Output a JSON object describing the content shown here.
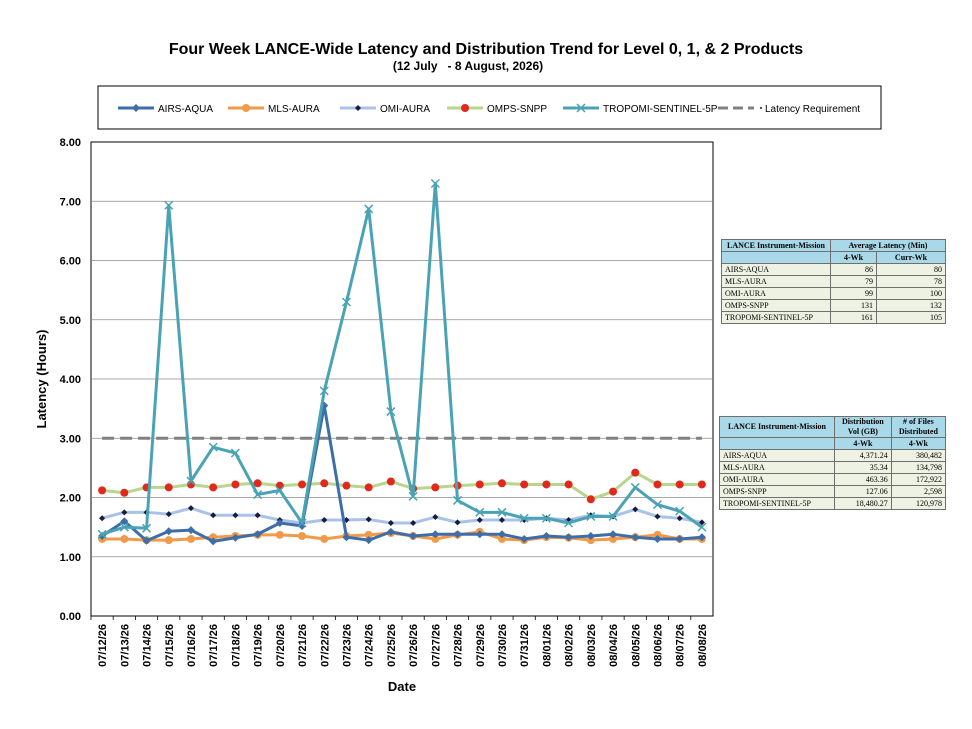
{
  "chart_data": {
    "type": "line",
    "title": "Four Week LANCE-Wide Latency and Distribution Trend for Level 0, 1, & 2 Products",
    "subtitle": "(12 July   - 8 August, 2026)",
    "xlabel": "Date",
    "ylabel": "Latency (Hours)",
    "ylim": [
      0,
      8
    ],
    "yticks": [
      "0.00",
      "1.00",
      "2.00",
      "3.00",
      "4.00",
      "5.00",
      "6.00",
      "7.00",
      "8.00"
    ],
    "grid": true,
    "legend_position": "top",
    "categories": [
      "07/12/26",
      "07/13/26",
      "07/14/26",
      "07/15/26",
      "07/16/26",
      "07/17/26",
      "07/18/26",
      "07/19/26",
      "07/20/26",
      "07/21/26",
      "07/22/26",
      "07/23/26",
      "07/24/26",
      "07/25/26",
      "07/26/26",
      "07/27/26",
      "07/28/26",
      "07/29/26",
      "07/30/26",
      "07/31/26",
      "08/01/26",
      "08/02/26",
      "08/03/26",
      "08/04/26",
      "08/05/26",
      "08/06/26",
      "08/07/26",
      "08/08/26"
    ],
    "series": [
      {
        "name": "AIRS-AQUA",
        "color": "#3d6ea7",
        "marker": "diamond",
        "values": [
          1.35,
          1.6,
          1.27,
          1.43,
          1.45,
          1.26,
          1.32,
          1.38,
          1.57,
          1.52,
          3.55,
          1.33,
          1.28,
          1.42,
          1.35,
          1.38,
          1.38,
          1.38,
          1.38,
          1.3,
          1.35,
          1.33,
          1.35,
          1.38,
          1.33,
          1.3,
          1.3,
          1.33
        ]
      },
      {
        "name": "MLS-AURA",
        "color": "#f19a49",
        "marker": "circle",
        "values": [
          1.3,
          1.3,
          1.28,
          1.28,
          1.3,
          1.33,
          1.35,
          1.37,
          1.37,
          1.35,
          1.3,
          1.35,
          1.37,
          1.4,
          1.35,
          1.3,
          1.37,
          1.42,
          1.3,
          1.28,
          1.33,
          1.32,
          1.28,
          1.3,
          1.33,
          1.37,
          1.3,
          1.3
        ]
      },
      {
        "name": "OMI-AURA",
        "color": "#a9c3e8",
        "marker": "small-diamond",
        "values": [
          1.65,
          1.75,
          1.75,
          1.72,
          1.82,
          1.7,
          1.7,
          1.7,
          1.62,
          1.57,
          1.62,
          1.62,
          1.63,
          1.57,
          1.57,
          1.67,
          1.58,
          1.62,
          1.62,
          1.62,
          1.65,
          1.62,
          1.7,
          1.68,
          1.8,
          1.68,
          1.65,
          1.58
        ]
      },
      {
        "name": "OMPS-SNPP",
        "color": "#b8d58e",
        "marker": "red-dot",
        "values": [
          2.12,
          2.08,
          2.17,
          2.17,
          2.22,
          2.17,
          2.22,
          2.24,
          2.2,
          2.22,
          2.24,
          2.2,
          2.17,
          2.27,
          2.15,
          2.17,
          2.2,
          2.22,
          2.24,
          2.22,
          2.22,
          2.22,
          1.97,
          2.1,
          2.42,
          2.22,
          2.22,
          2.22
        ]
      },
      {
        "name": "TROPOMI-SENTINEL-5P",
        "color": "#4aa3b5",
        "marker": "x",
        "values": [
          1.38,
          1.5,
          1.48,
          6.93,
          2.28,
          2.85,
          2.75,
          2.05,
          2.12,
          1.57,
          3.8,
          5.3,
          6.87,
          3.45,
          2.02,
          7.3,
          1.95,
          1.75,
          1.75,
          1.65,
          1.65,
          1.57,
          1.68,
          1.68,
          2.17,
          1.88,
          1.77,
          1.5
        ]
      },
      {
        "name": "Latency Requirement",
        "color": "#808080",
        "marker": "dash",
        "values": [
          3,
          3,
          3,
          3,
          3,
          3,
          3,
          3,
          3,
          3,
          3,
          3,
          3,
          3,
          3,
          3,
          3,
          3,
          3,
          3,
          3,
          3,
          3,
          3,
          3,
          3,
          3,
          3
        ]
      }
    ]
  },
  "latency_table": {
    "header_col1": "LANCE Instrument-Mission",
    "header_col2": "Average Latency (Min)",
    "sub_4wk": "4-Wk",
    "sub_curr": "Curr-Wk",
    "rows": [
      {
        "name": "AIRS-AQUA",
        "wk4": "86",
        "curr": "80"
      },
      {
        "name": "MLS-AURA",
        "wk4": "79",
        "curr": "78"
      },
      {
        "name": "OMI-AURA",
        "wk4": "99",
        "curr": "100"
      },
      {
        "name": "OMPS-SNPP",
        "wk4": "131",
        "curr": "132"
      },
      {
        "name": "TROPOMI-SENTINEL-5P",
        "wk4": "161",
        "curr": "105"
      }
    ]
  },
  "distribution_table": {
    "header_col1": "LANCE Instrument-Mission",
    "header_col2": "Distribution Vol (GB)",
    "header_col3": "# of Files Distributed",
    "sub_vol": "4-Wk",
    "sub_files": "4-Wk",
    "rows": [
      {
        "name": "AIRS-AQUA",
        "vol": "4,371.24",
        "files": "380,482"
      },
      {
        "name": "MLS-AURA",
        "vol": "35.34",
        "files": "134,798"
      },
      {
        "name": "OMI-AURA",
        "vol": "463.36",
        "files": "172,922"
      },
      {
        "name": "OMPS-SNPP",
        "vol": "127.06",
        "files": "2,598"
      },
      {
        "name": "TROPOMI-SENTINEL-5P",
        "vol": "18,480.27",
        "files": "120,978"
      }
    ]
  }
}
